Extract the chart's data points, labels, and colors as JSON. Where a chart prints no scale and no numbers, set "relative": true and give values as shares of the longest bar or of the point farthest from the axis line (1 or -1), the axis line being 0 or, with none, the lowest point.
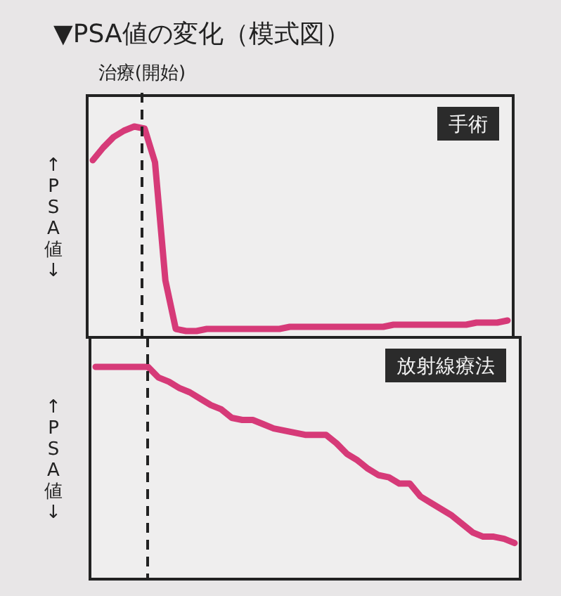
{
  "chart_data": [
    {
      "type": "line",
      "title": "▼PSA値の変化（模式図）",
      "ylabel": "↑PSA値↓",
      "relative": true,
      "line_style": "solid",
      "annotations": [
        "治療(開始)",
        "手術"
      ],
      "categories": [
        null,
        null,
        null,
        null,
        null,
        null,
        null,
        null,
        null,
        null,
        null,
        null,
        null,
        null,
        null,
        null,
        null,
        null,
        null,
        null,
        null,
        null,
        null,
        null,
        null,
        null,
        null,
        null,
        null,
        null,
        null,
        null,
        null,
        null,
        null,
        null,
        null,
        null,
        null,
        null,
        null
      ],
      "series": [
        {
          "color": "#d63a78",
          "values": [
            0.84,
            0.9,
            0.95,
            0.98,
            1,
            0.99,
            0.83,
            0.27,
            0.04,
            0.03,
            0.03,
            0.04,
            0.04,
            0.04,
            0.04,
            0.04,
            0.04,
            0.04,
            0.04,
            0.05,
            0.05,
            0.05,
            0.05,
            0.05,
            0.05,
            0.05,
            0.05,
            0.05,
            0.05,
            0.06,
            0.06,
            0.06,
            0.06,
            0.06,
            0.06,
            0.06,
            0.06,
            0.07,
            0.07,
            0.07,
            0.08
          ]
        }
      ]
    },
    {
      "type": "line",
      "ylabel": "↑PSA値↓",
      "relative": true,
      "line_style": "solid",
      "annotations": [
        "放射線療法"
      ],
      "categories": [
        null,
        null,
        null,
        null,
        null,
        null,
        null,
        null,
        null,
        null,
        null,
        null,
        null,
        null,
        null,
        null,
        null,
        null,
        null,
        null,
        null,
        null,
        null,
        null,
        null,
        null,
        null,
        null,
        null,
        null,
        null,
        null,
        null,
        null,
        null,
        null,
        null,
        null,
        null,
        null,
        null
      ],
      "series": [
        {
          "color": "#d63a78",
          "values": [
            1,
            1,
            1,
            1,
            1,
            1,
            0.95,
            0.93,
            0.9,
            0.88,
            0.85,
            0.82,
            0.8,
            0.76,
            0.75,
            0.75,
            0.73,
            0.71,
            0.7,
            0.69,
            0.68,
            0.68,
            0.68,
            0.64,
            0.59,
            0.56,
            0.52,
            0.49,
            0.48,
            0.45,
            0.45,
            0.39,
            0.36,
            0.33,
            0.3,
            0.26,
            0.22,
            0.2,
            0.2,
            0.19,
            0.17
          ]
        }
      ]
    }
  ]
}
